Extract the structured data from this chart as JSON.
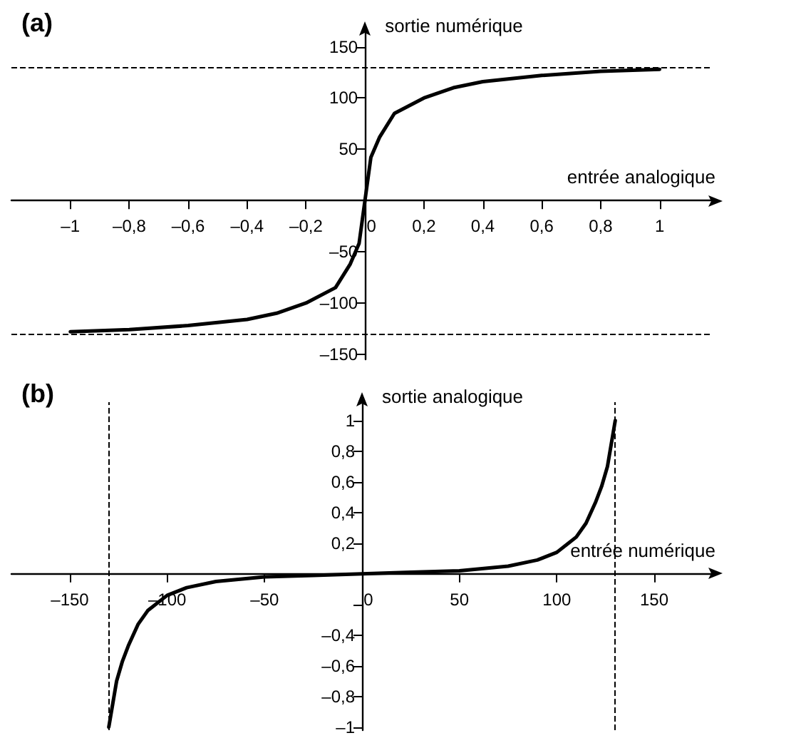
{
  "chart_data": [
    {
      "type": "line",
      "title": "(a)",
      "xlabel": "entrée analogique",
      "ylabel": "sortie numérique",
      "color": "#000000",
      "marker": "none",
      "grid": false,
      "x": [
        -1,
        -0.8,
        -0.6,
        -0.4,
        -0.3,
        -0.2,
        -0.1,
        -0.05,
        -0.02,
        0,
        0.02,
        0.05,
        0.1,
        0.2,
        0.3,
        0.4,
        0.6,
        0.8,
        1
      ],
      "values": [
        -128,
        -126,
        -122,
        -116,
        -110,
        -100,
        -85,
        -62,
        -42,
        0,
        42,
        62,
        85,
        100,
        110,
        116,
        122,
        126,
        128
      ],
      "xlim": [
        -1.2,
        1.18
      ],
      "ylim": [
        -155,
        165
      ],
      "xticks": [
        {
          "value": -1,
          "label": "–1"
        },
        {
          "value": -0.8,
          "label": "–0,8"
        },
        {
          "value": -0.6,
          "label": "–0,6"
        },
        {
          "value": -0.4,
          "label": "–0,4"
        },
        {
          "value": -0.2,
          "label": "–0,2"
        },
        {
          "value": 0,
          "label": "0"
        },
        {
          "value": 0.2,
          "label": "0,2"
        },
        {
          "value": 0.4,
          "label": "0,4"
        },
        {
          "value": 0.6,
          "label": "0,6"
        },
        {
          "value": 0.8,
          "label": "0,8"
        },
        1
      ],
      "yticks": [
        {
          "value": -150,
          "label": "–150"
        },
        {
          "value": -100,
          "label": "–100"
        },
        {
          "value": -50,
          "label": "–50"
        },
        50,
        100,
        150
      ],
      "ref_lines": [
        {
          "axis": "y",
          "value": 130,
          "line_style": "dashed"
        },
        {
          "axis": "y",
          "value": -130,
          "line_style": "dashed"
        }
      ]
    },
    {
      "type": "line",
      "title": "(b)",
      "xlabel": "entrée numérique",
      "ylabel": "sortie analogique",
      "color": "#000000",
      "marker": "none",
      "grid": false,
      "x": [
        -130,
        -128,
        -126,
        -123,
        -120,
        -115,
        -110,
        -100,
        -90,
        -75,
        -50,
        -25,
        0,
        25,
        50,
        75,
        90,
        100,
        110,
        115,
        120,
        123,
        126,
        128,
        130
      ],
      "values": [
        -1,
        -0.85,
        -0.7,
        -0.57,
        -0.47,
        -0.33,
        -0.24,
        -0.14,
        -0.09,
        -0.05,
        -0.02,
        -0.01,
        0,
        0.01,
        0.02,
        0.05,
        0.09,
        0.14,
        0.24,
        0.33,
        0.47,
        0.57,
        0.7,
        0.85,
        1
      ],
      "xlim": [
        -180,
        180
      ],
      "ylim": [
        -1.02,
        1.12
      ],
      "xticks": [
        {
          "value": -150,
          "label": "–150"
        },
        {
          "value": -100,
          "label": "–100"
        },
        {
          "value": -50,
          "label": "–50"
        },
        {
          "value": 0,
          "label": "0"
        },
        50,
        100,
        150
      ],
      "yticks": [
        {
          "value": -1,
          "label": "–1"
        },
        {
          "value": -0.8,
          "label": "–0,8"
        },
        {
          "value": -0.6,
          "label": "–0,6"
        },
        {
          "value": -0.4,
          "label": "–0,4"
        },
        {
          "value": -0.2,
          "label": null
        },
        {
          "value": 0.2,
          "label": "0,2"
        },
        {
          "value": 0.4,
          "label": "0,4"
        },
        {
          "value": 0.6,
          "label": "0,6"
        },
        {
          "value": 0.8,
          "label": "0,8"
        },
        1
      ],
      "ref_lines": [
        {
          "axis": "x",
          "value": -130,
          "line_style": "dashed"
        },
        {
          "axis": "x",
          "value": 130,
          "line_style": "dashed"
        }
      ]
    }
  ]
}
